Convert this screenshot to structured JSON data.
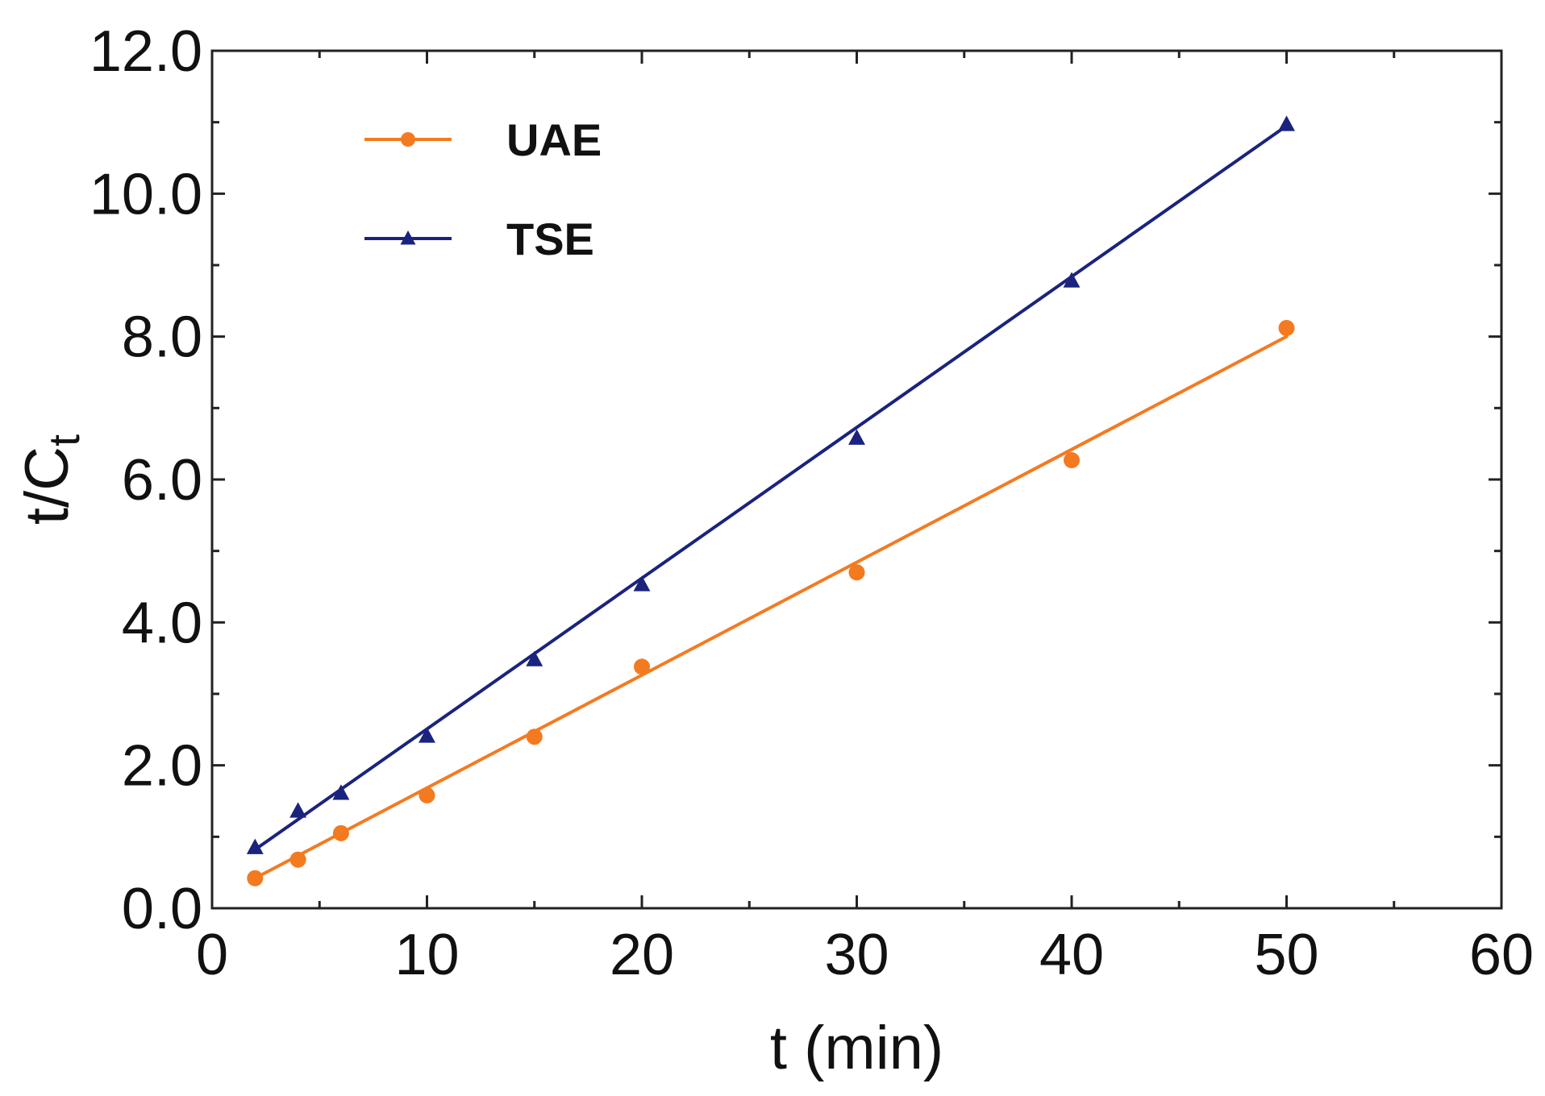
{
  "chart_data": {
    "type": "line",
    "title": "",
    "xlabel": "t (min)",
    "ylabel": {
      "main": "t/C",
      "subscript": "t"
    },
    "xlim": [
      0,
      60
    ],
    "ylim": [
      0,
      12
    ],
    "x_major_ticks": [
      0,
      10,
      20,
      30,
      40,
      50,
      60
    ],
    "x_tick_labels": [
      "0",
      "10",
      "20",
      "30",
      "40",
      "50",
      "60"
    ],
    "x_minor_ticks": [
      5,
      15,
      25,
      35,
      45,
      55
    ],
    "y_major_ticks": [
      0,
      2,
      4,
      6,
      8,
      10,
      12
    ],
    "y_tick_labels": [
      "0.0",
      "2.0",
      "4.0",
      "6.0",
      "8.0",
      "10.0",
      "12.0"
    ],
    "y_minor_ticks": [
      1,
      3,
      5,
      7,
      9,
      11
    ],
    "grid": false,
    "legend_position": "top-left",
    "series": [
      {
        "name": "UAE",
        "color": "#f47a20",
        "marker": "circle",
        "x": [
          2,
          4,
          6,
          10,
          15,
          20,
          30,
          40,
          50
        ],
        "y": [
          0.42,
          0.68,
          1.05,
          1.58,
          2.4,
          3.38,
          4.7,
          6.27,
          8.12
        ],
        "fit": {
          "x": [
            2,
            50
          ],
          "y": [
            0.42,
            8.0
          ]
        }
      },
      {
        "name": "TSE",
        "color": "#1a237e",
        "marker": "triangle",
        "x": [
          2,
          4,
          6,
          10,
          15,
          20,
          30,
          40,
          50
        ],
        "y": [
          0.85,
          1.36,
          1.61,
          2.41,
          3.48,
          4.53,
          6.58,
          8.78,
          10.97
        ],
        "fit": {
          "x": [
            2,
            50
          ],
          "y": [
            0.82,
            10.95
          ]
        }
      }
    ]
  }
}
